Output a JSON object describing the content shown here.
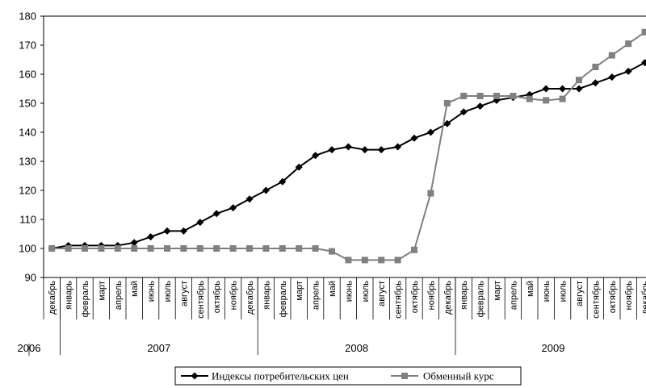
{
  "chart_data": {
    "type": "line",
    "title": "",
    "xlabel": "",
    "ylabel": "",
    "ylim": [
      90,
      180
    ],
    "yticks": [
      90,
      100,
      110,
      120,
      130,
      140,
      150,
      160,
      170,
      180
    ],
    "grid": false,
    "legend_position": "bottom",
    "categories": [
      "декабрь",
      "январь",
      "февраль",
      "март",
      "апрель",
      "май",
      "июнь",
      "июль",
      "август",
      "сентябрь",
      "октябрь",
      "ноябрь",
      "декабрь",
      "январь",
      "февраль",
      "март",
      "апрель",
      "май",
      "июнь",
      "июль",
      "август",
      "сентябрь",
      "октябрь",
      "ноябрь",
      "декабрь",
      "январь",
      "февраль",
      "март",
      "апрель",
      "май",
      "июнь",
      "июль",
      "август",
      "сентябрь",
      "октябрь",
      "ноябрь",
      "декабрь"
    ],
    "years": [
      {
        "label": "2006",
        "start": 0,
        "end": 0
      },
      {
        "label": "2007",
        "start": 1,
        "end": 12
      },
      {
        "label": "2008",
        "start": 13,
        "end": 24
      },
      {
        "label": "2009",
        "start": 25,
        "end": 36
      }
    ],
    "series": [
      {
        "name": "Индексы потребительских цен",
        "color": "#000000",
        "marker": "diamond",
        "values": [
          100,
          101,
          101,
          101,
          101,
          102,
          104,
          106,
          106,
          109,
          112,
          114,
          117,
          120,
          123,
          128,
          132,
          134,
          135,
          134,
          134,
          135,
          138,
          140,
          143,
          147,
          149,
          151,
          152,
          153,
          155,
          155,
          155,
          157,
          159,
          161,
          164
        ]
      },
      {
        "name": "Обменный курс",
        "color": "#808080",
        "marker": "square",
        "values": [
          100,
          100,
          100,
          100,
          100,
          100,
          100,
          100,
          100,
          100,
          100,
          100,
          100,
          100,
          100,
          100,
          100,
          99,
          96,
          96,
          96,
          96,
          99.5,
          119,
          150,
          152.5,
          152.5,
          152.5,
          152.5,
          151.5,
          151,
          151.5,
          158,
          162.5,
          166.5,
          170.5,
          174.5
        ]
      }
    ]
  }
}
